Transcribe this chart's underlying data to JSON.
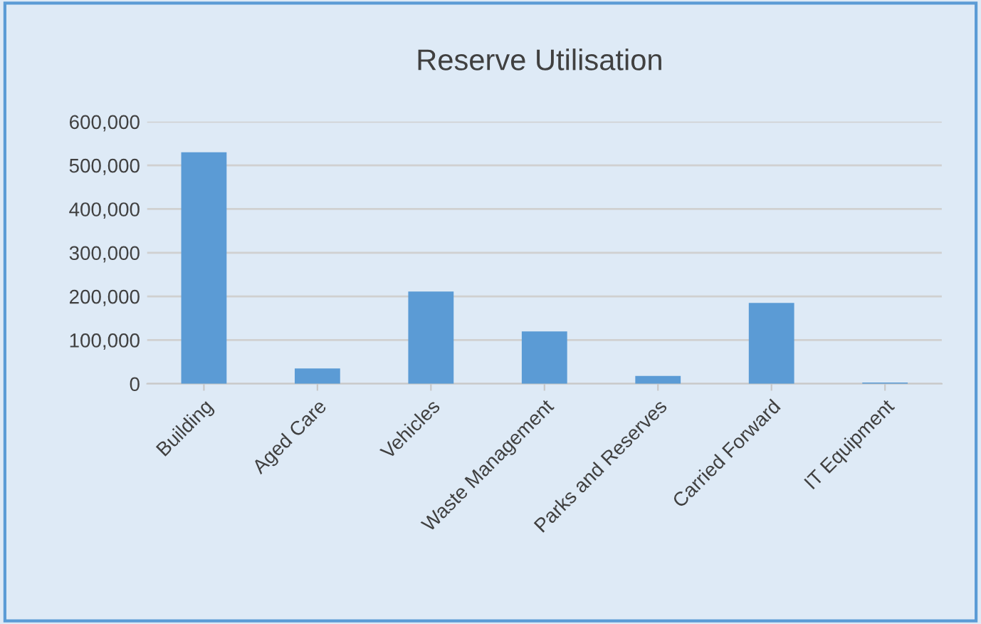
{
  "chart_data": {
    "type": "bar",
    "title": "Reserve Utilisation",
    "categories": [
      "Building",
      "Aged Care",
      "Vehicles",
      "Waste Management",
      "Parks and Reserves",
      "Carried Forward",
      "IT Equipment"
    ],
    "values": [
      530000,
      35000,
      211000,
      120000,
      18000,
      185000,
      3000
    ],
    "color": "#5b9bd5",
    "ylim": [
      0,
      600000
    ],
    "yticks": [
      {
        "value": 0,
        "label": "0"
      },
      {
        "value": 100000,
        "label": "100,000"
      },
      {
        "value": 200000,
        "label": "200,000"
      },
      {
        "value": 300000,
        "label": "300,000"
      },
      {
        "value": 400000,
        "label": "400,000"
      },
      {
        "value": 500000,
        "label": "500,000"
      },
      {
        "value": 600000,
        "label": "600,000"
      }
    ],
    "grid": "y"
  }
}
